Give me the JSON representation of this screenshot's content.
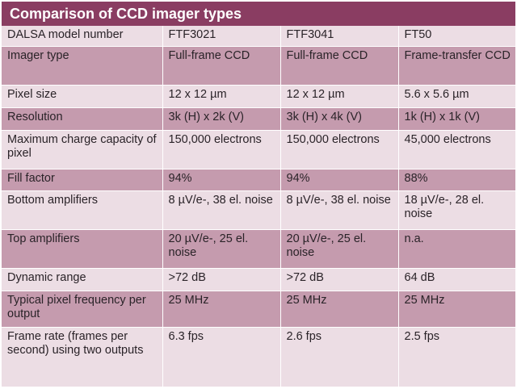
{
  "title": "Comparison of CCD imager types",
  "rows": [
    {
      "label": "DALSA model number",
      "values": [
        "FTF3021",
        "FTF3041",
        "FT50"
      ]
    },
    {
      "label": "Imager type",
      "values": [
        "Full-frame CCD",
        "Full-frame CCD",
        "Frame-transfer CCD"
      ]
    },
    {
      "label": "Pixel size",
      "values": [
        "12 x 12 µm",
        "12 x 12 µm",
        "5.6 x 5.6 µm"
      ]
    },
    {
      "label": "Resolution",
      "values": [
        "3k (H) x 2k (V)",
        "3k (H) x 4k (V)",
        "1k (H) x 1k (V)"
      ]
    },
    {
      "label": "Maximum charge capacity of pixel",
      "values": [
        "150,000 electrons",
        "150,000 electrons",
        "45,000 electrons"
      ]
    },
    {
      "label": "Fill factor",
      "values": [
        "94%",
        "94%",
        "88%"
      ]
    },
    {
      "label": "Bottom amplifiers",
      "values": [
        "8 µV/e-, 38 el. noise",
        "8 µV/e-, 38 el. noise",
        "18 µV/e-, 28 el. noise"
      ]
    },
    {
      "label": "Top amplifiers",
      "values": [
        "20 µV/e-, 25 el. noise",
        "20 µV/e-, 25 el. noise",
        "n.a."
      ]
    },
    {
      "label": "Dynamic range",
      "values": [
        ">72 dB",
        ">72 dB",
        "64 dB"
      ]
    },
    {
      "label": "Typical pixel frequency per output",
      "values": [
        "25 MHz",
        "25 MHz",
        "25 MHz"
      ]
    },
    {
      "label": "Frame rate (frames per second) using two outputs",
      "values": [
        "6.3 fps",
        "2.6 fps",
        "2.5 fps"
      ]
    }
  ],
  "colors": {
    "title_bg": "#8a3d62",
    "row_light": "#ecdde4",
    "row_dark": "#c59bae"
  }
}
